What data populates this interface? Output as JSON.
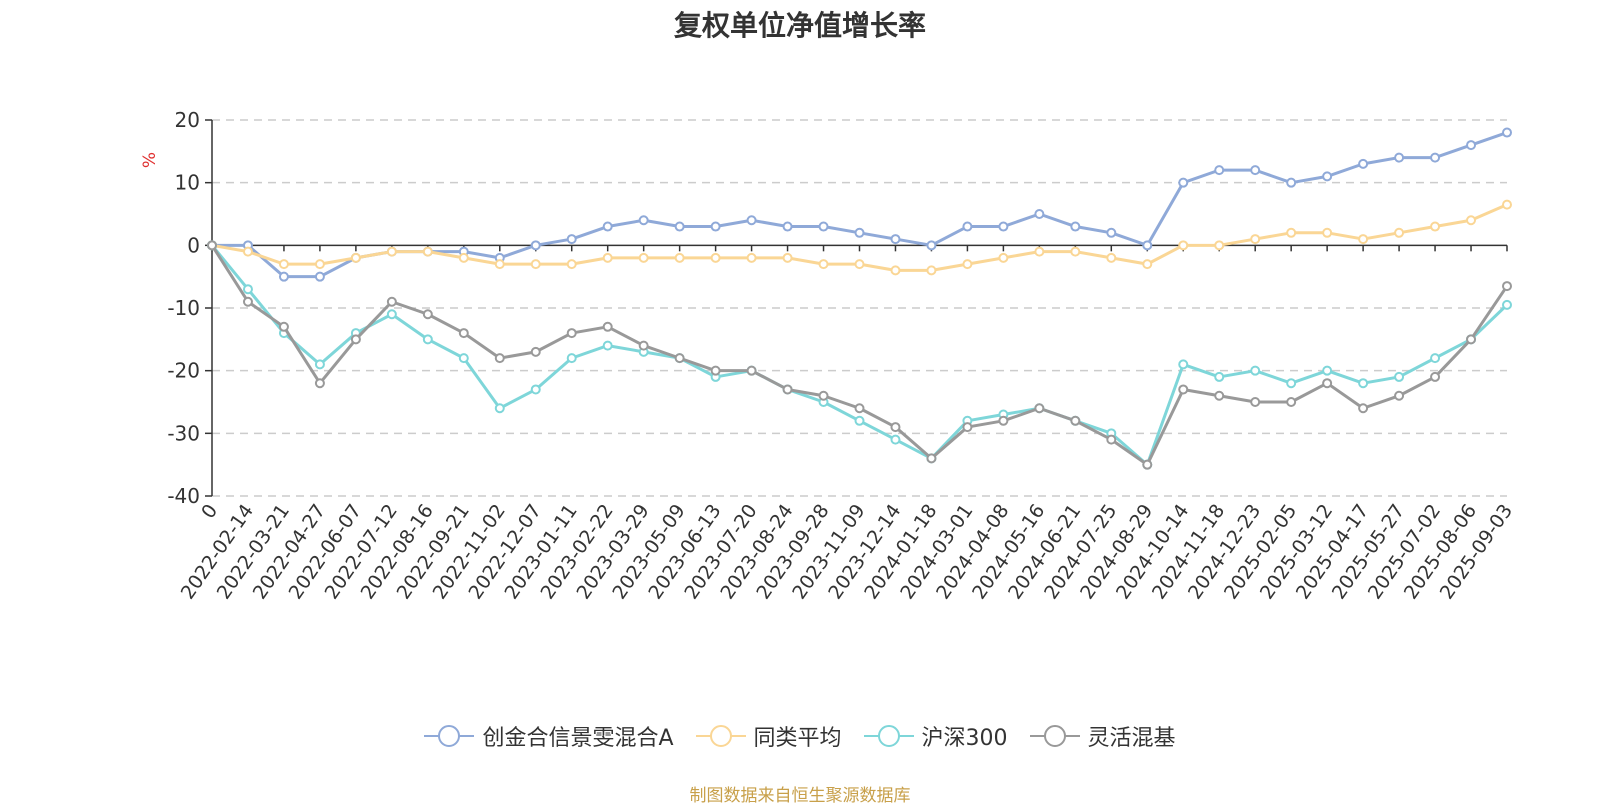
{
  "chart_data": {
    "type": "line",
    "title": "复权单位净值增长率",
    "ylabel": "%",
    "ylim": [
      -40,
      20
    ],
    "yticks": [
      20,
      10,
      0,
      -10,
      -20,
      -30,
      -40
    ],
    "grid": true,
    "legend_position": "bottom",
    "x_tick_labels": [
      "0",
      "2022-02-14",
      "2022-03-21",
      "2022-04-27",
      "2022-06-07",
      "2022-07-12",
      "2022-08-16",
      "2022-09-21",
      "2022-11-02",
      "2022-12-07",
      "2023-01-11",
      "2023-02-22",
      "2023-03-29",
      "2023-05-09",
      "2023-06-13",
      "2023-07-20",
      "2023-08-24",
      "2023-09-28",
      "2023-11-09",
      "2023-12-14",
      "2024-01-18",
      "2024-03-01",
      "2024-04-08",
      "2024-05-16",
      "2024-06-21",
      "2024-07-25",
      "2024-08-29",
      "2024-10-14",
      "2024-11-18",
      "2024-12-23",
      "2025-02-05",
      "2025-03-12",
      "2025-04-17",
      "2025-05-27",
      "2025-07-02",
      "2025-08-06",
      "2025-09-03"
    ],
    "series": [
      {
        "name": "创金合信景雯混合A",
        "color": "#8fa9d8",
        "values": [
          0,
          0,
          -5,
          -5,
          -2,
          -1,
          -1,
          -1,
          -2,
          0,
          1,
          3,
          4,
          3,
          3,
          4,
          3,
          3,
          2,
          1,
          0,
          3,
          3,
          5,
          3,
          2,
          0,
          10,
          12,
          12,
          10,
          11,
          13,
          14,
          14,
          16,
          18
        ]
      },
      {
        "name": "同类平均",
        "color": "#fad695",
        "values": [
          0,
          -1,
          -3,
          -3,
          -2,
          -1,
          -1,
          -2,
          -3,
          -3,
          -3,
          -2,
          -2,
          -2,
          -2,
          -2,
          -2,
          -3,
          -3,
          -4,
          -4,
          -3,
          -2,
          -1,
          -1,
          -2,
          -3,
          0,
          0,
          1,
          2,
          2,
          1,
          2,
          3,
          4,
          6.5
        ]
      },
      {
        "name": "沪深300",
        "color": "#7ed6d9",
        "values": [
          0,
          -7,
          -14,
          -19,
          -14,
          -11,
          -15,
          -18,
          -26,
          -23,
          -18,
          -16,
          -17,
          -18,
          -21,
          -20,
          -23,
          -25,
          -28,
          -31,
          -34,
          -28,
          -27,
          -26,
          -28,
          -30,
          -35,
          -19,
          -21,
          -20,
          -22,
          -20,
          -22,
          -21,
          -18,
          -15,
          -9.5
        ]
      },
      {
        "name": "灵活混基",
        "color": "#999999",
        "values": [
          0,
          -9,
          -13,
          -22,
          -15,
          -9,
          -11,
          -14,
          -18,
          -17,
          -14,
          -13,
          -16,
          -18,
          -20,
          -20,
          -23,
          -24,
          -26,
          -29,
          -34,
          -29,
          -28,
          -26,
          -28,
          -31,
          -35,
          -23,
          -24,
          -25,
          -25,
          -22,
          -26,
          -24,
          -21,
          -15,
          -6.5
        ]
      }
    ]
  },
  "source": "制图数据来自恒生聚源数据库"
}
